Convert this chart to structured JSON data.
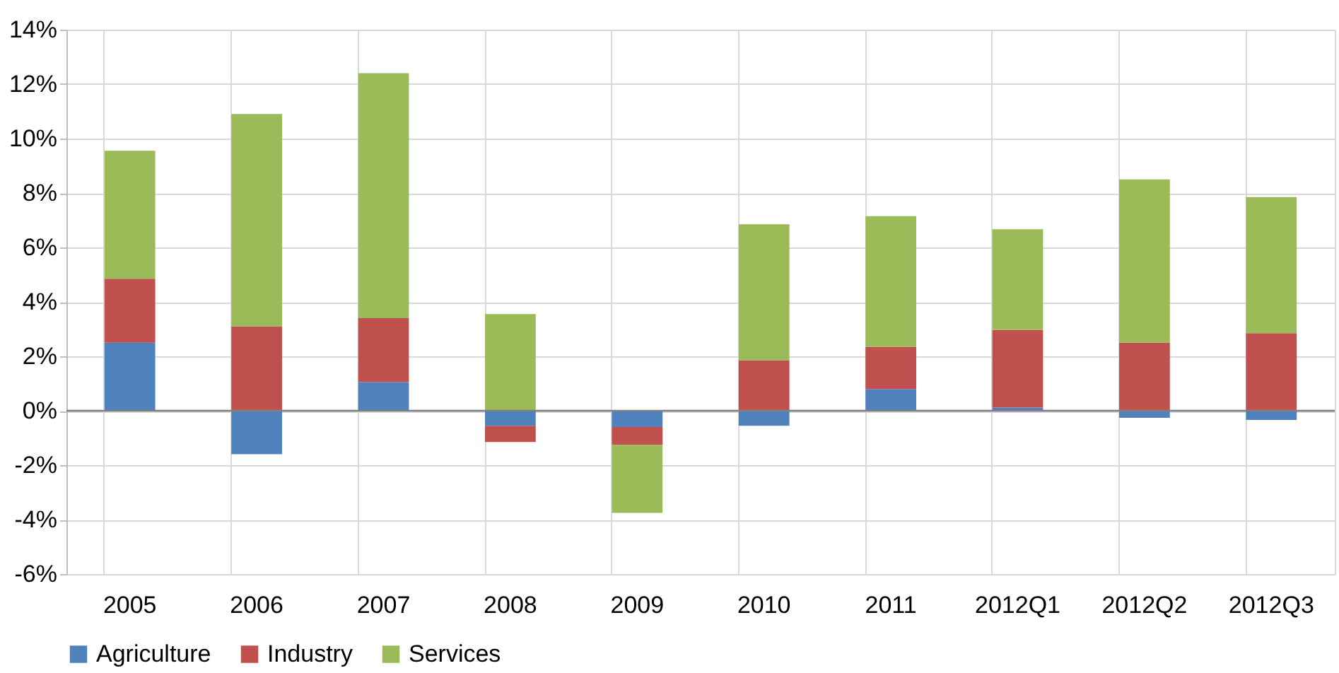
{
  "chart_data": {
    "type": "bar",
    "stacked": true,
    "categories": [
      "2005",
      "2006",
      "2007",
      "2008",
      "2009",
      "2010",
      "2011",
      "2012Q1",
      "2012Q2",
      "2012Q3"
    ],
    "series": [
      {
        "name": "Agriculture",
        "color": "#4f81bd",
        "values": [
          2.5,
          -1.6,
          1.05,
          -0.55,
          -0.6,
          -0.55,
          0.8,
          0.12,
          -0.26,
          -0.34
        ]
      },
      {
        "name": "Industry",
        "color": "#c0504d",
        "values": [
          2.35,
          3.1,
          2.35,
          -0.6,
          -0.65,
          1.85,
          1.55,
          2.85,
          2.5,
          2.85
        ]
      },
      {
        "name": "Services",
        "color": "#9bbb59",
        "values": [
          4.7,
          7.8,
          9.0,
          3.55,
          -2.5,
          5.0,
          4.8,
          3.7,
          6.0,
          5.0
        ]
      }
    ],
    "ylim": [
      -6,
      14
    ],
    "yticks": [
      {
        "value": -6,
        "label": "-6%"
      },
      {
        "value": -4,
        "label": "-4%"
      },
      {
        "value": -2,
        "label": "-2%"
      },
      {
        "value": 0,
        "label": "0%"
      },
      {
        "value": 2,
        "label": "2%"
      },
      {
        "value": 4,
        "label": "4%"
      },
      {
        "value": 6,
        "label": "6%"
      },
      {
        "value": 8,
        "label": "8%"
      },
      {
        "value": 10,
        "label": "10%"
      },
      {
        "value": 12,
        "label": "12%"
      },
      {
        "value": 14,
        "label": "14%"
      }
    ],
    "grid": true,
    "legend": "bottom"
  }
}
